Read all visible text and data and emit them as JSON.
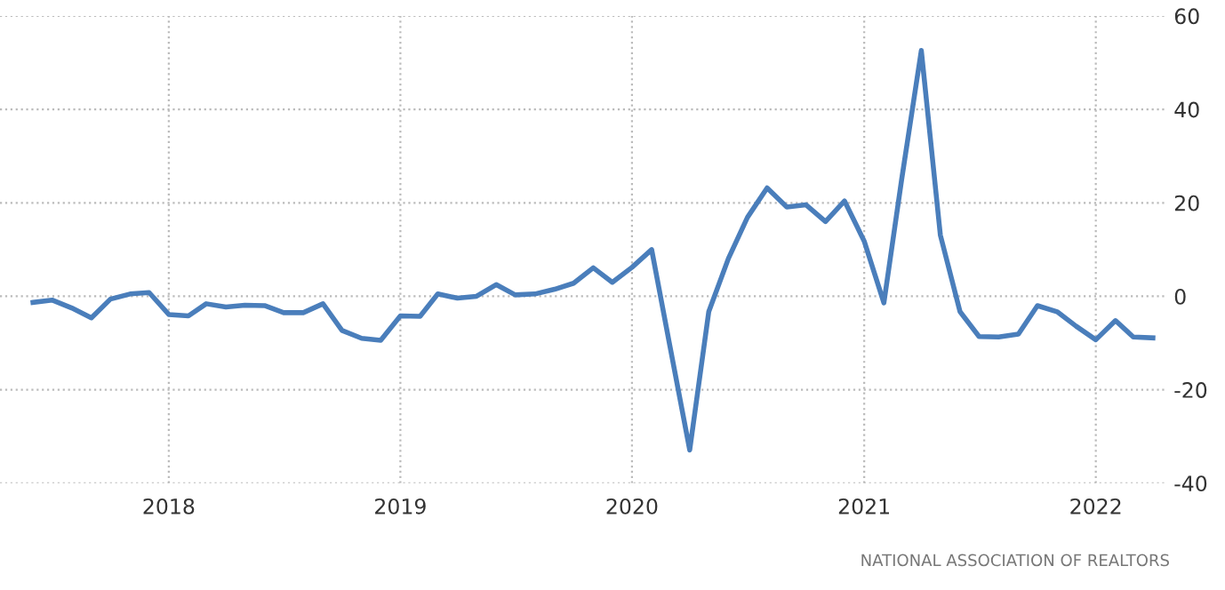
{
  "chart_data": {
    "type": "line",
    "x": [
      "2017-06",
      "2017-07",
      "2017-08",
      "2017-09",
      "2017-10",
      "2017-11",
      "2017-12",
      "2018-01",
      "2018-02",
      "2018-03",
      "2018-04",
      "2018-05",
      "2018-06",
      "2018-07",
      "2018-08",
      "2018-09",
      "2018-10",
      "2018-11",
      "2018-12",
      "2019-01",
      "2019-02",
      "2019-03",
      "2019-04",
      "2019-05",
      "2019-06",
      "2019-07",
      "2019-08",
      "2019-09",
      "2019-10",
      "2019-11",
      "2019-12",
      "2020-01",
      "2020-02",
      "2020-03",
      "2020-04",
      "2020-05",
      "2020-06",
      "2020-07",
      "2020-08",
      "2020-09",
      "2020-10",
      "2020-11",
      "2020-12",
      "2021-01",
      "2021-02",
      "2021-03",
      "2021-04",
      "2021-05",
      "2021-06",
      "2021-07",
      "2021-08",
      "2021-09",
      "2021-10",
      "2021-11",
      "2021-12",
      "2022-01",
      "2022-02",
      "2022-03",
      "2022-04"
    ],
    "series": [
      {
        "color": "#4a7ebb",
        "values": [
          -1.3,
          -0.8,
          -2.5,
          -4.6,
          -0.6,
          0.5,
          0.8,
          -3.9,
          -4.2,
          -1.6,
          -2.3,
          -1.9,
          -2.0,
          -3.5,
          -3.5,
          -1.6,
          -7.3,
          -9.0,
          -9.4,
          -4.2,
          -4.3,
          0.5,
          -0.4,
          0,
          2.5,
          0.3,
          0.5,
          1.5,
          2.8,
          6.1,
          3.0,
          6.2,
          10,
          -10.8,
          -32.9,
          -3.3,
          8.1,
          16.9,
          23.2,
          19.1,
          19.6,
          16,
          20.4,
          11.8,
          -1.4,
          25,
          52.6,
          13.1,
          -3.3,
          -8.6,
          -8.7,
          -8.1,
          -2,
          -3.3,
          -6.4,
          -9.3,
          -5.2,
          -8.7,
          -8.9
        ]
      }
    ],
    "xlim": [
      "2017-04-10",
      "2022-04-20"
    ],
    "xticks": [
      {
        "value": "2018-01-01",
        "label": "2018"
      },
      {
        "value": "2019-01-01",
        "label": "2019"
      },
      {
        "value": "2020-01-01",
        "label": "2020"
      },
      {
        "value": "2021-01-01",
        "label": "2021"
      },
      {
        "value": "2022-01-01",
        "label": "2022"
      }
    ],
    "ylim": [
      -40,
      60
    ],
    "yticks": [
      -40,
      -20,
      0,
      20,
      40,
      60
    ],
    "grid": true,
    "legend": false,
    "marker": "none",
    "line_style": "solid",
    "annotations": [
      "NATIONAL ASSOCIATION OF REALTORS"
    ]
  }
}
